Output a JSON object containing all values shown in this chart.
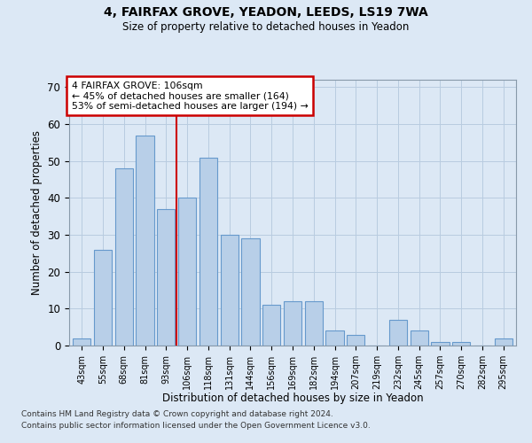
{
  "title1": "4, FAIRFAX GROVE, YEADON, LEEDS, LS19 7WA",
  "title2": "Size of property relative to detached houses in Yeadon",
  "xlabel": "Distribution of detached houses by size in Yeadon",
  "ylabel": "Number of detached properties",
  "categories": [
    "43sqm",
    "55sqm",
    "68sqm",
    "81sqm",
    "93sqm",
    "106sqm",
    "118sqm",
    "131sqm",
    "144sqm",
    "156sqm",
    "169sqm",
    "182sqm",
    "194sqm",
    "207sqm",
    "219sqm",
    "232sqm",
    "245sqm",
    "257sqm",
    "270sqm",
    "282sqm",
    "295sqm"
  ],
  "values": [
    2,
    26,
    48,
    57,
    37,
    40,
    51,
    30,
    29,
    11,
    12,
    12,
    4,
    3,
    0,
    7,
    4,
    1,
    1,
    0,
    2
  ],
  "bar_color": "#b8cfe8",
  "bar_edge_color": "#6699cc",
  "highlight_index": 5,
  "highlight_line_color": "#cc0000",
  "ylim": [
    0,
    72
  ],
  "yticks": [
    0,
    10,
    20,
    30,
    40,
    50,
    60,
    70
  ],
  "annotation_line1": "4 FAIRFAX GROVE: 106sqm",
  "annotation_line2": "← 45% of detached houses are smaller (164)",
  "annotation_line3": "53% of semi-detached houses are larger (194) →",
  "annotation_box_color": "#cc0000",
  "footer1": "Contains HM Land Registry data © Crown copyright and database right 2024.",
  "footer2": "Contains public sector information licensed under the Open Government Licence v3.0.",
  "background_color": "#dce8f5",
  "grid_color": "#b8cce0"
}
